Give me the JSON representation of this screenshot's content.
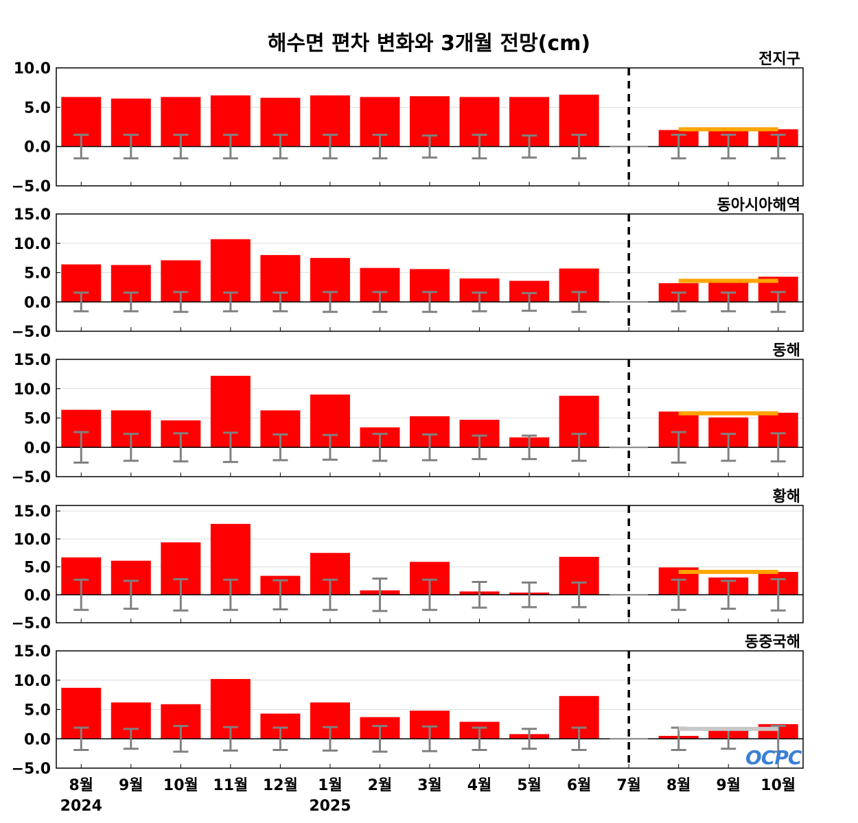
{
  "title": "해수면 편차 변화와 3개월 전망(cm)",
  "logo": "OCPC",
  "colors": {
    "bar": "#ff0000",
    "error_bar": "#808080",
    "forecast_line": "#ffa500",
    "forecast_line_neutral": "#c8c8c8",
    "divider": "#000000",
    "grid": "#dcdcdc"
  },
  "chart_data": {
    "type": "bar",
    "categories": [
      "8월",
      "9월",
      "10월",
      "11월",
      "12월",
      "1월",
      "2월",
      "3월",
      "4월",
      "5월",
      "6월",
      "7월",
      "8월",
      "9월",
      "10월"
    ],
    "year_labels": [
      {
        "index": 0,
        "label": "2024"
      },
      {
        "index": 5,
        "label": "2025"
      }
    ],
    "forecast_start_index": 12,
    "divider_index": 11,
    "panels": [
      {
        "name": "전지구",
        "ylim": [
          -5,
          10
        ],
        "yticks": [
          "10.0",
          "5.0",
          "0.0",
          "−5.0"
        ],
        "ytick_values": [
          10,
          5,
          0,
          -5
        ],
        "values": [
          6.3,
          6.1,
          6.3,
          6.5,
          6.2,
          6.5,
          6.3,
          6.4,
          6.3,
          6.3,
          6.6,
          0,
          2.1,
          2.2,
          2.2
        ],
        "error": [
          1.5,
          1.5,
          1.5,
          1.5,
          1.5,
          1.5,
          1.5,
          1.4,
          1.5,
          1.4,
          1.5,
          0,
          1.5,
          1.5,
          1.5
        ],
        "forecast_line": 2.2,
        "forecast_line_color": "#ffa500"
      },
      {
        "name": "동아시아해역",
        "ylim": [
          -5,
          15
        ],
        "yticks": [
          "15.0",
          "10.0",
          "5.0",
          "0.0",
          "−5.0"
        ],
        "ytick_values": [
          15,
          10,
          5,
          0,
          -5
        ],
        "values": [
          6.4,
          6.3,
          7.1,
          10.7,
          8.0,
          7.5,
          5.8,
          5.6,
          4.0,
          3.6,
          5.7,
          0,
          3.2,
          3.7,
          4.3
        ],
        "error": [
          1.6,
          1.6,
          1.7,
          1.6,
          1.6,
          1.7,
          1.7,
          1.7,
          1.6,
          1.5,
          1.7,
          0,
          1.6,
          1.6,
          1.7
        ],
        "forecast_line": 3.6,
        "forecast_line_color": "#ffa500"
      },
      {
        "name": "동해",
        "ylim": [
          -5,
          15
        ],
        "yticks": [
          "15.0",
          "10.0",
          "5.0",
          "0.0",
          "−5.0"
        ],
        "ytick_values": [
          15,
          10,
          5,
          0,
          -5
        ],
        "values": [
          6.4,
          6.3,
          4.6,
          12.2,
          6.3,
          9.0,
          3.4,
          5.3,
          4.7,
          1.7,
          8.8,
          0,
          6.1,
          5.1,
          5.9
        ],
        "error": [
          2.6,
          2.3,
          2.4,
          2.5,
          2.2,
          2.1,
          2.3,
          2.2,
          2.0,
          2.0,
          2.3,
          0,
          2.6,
          2.3,
          2.4
        ],
        "forecast_line": 5.8,
        "forecast_line_color": "#ffa500"
      },
      {
        "name": "황해",
        "ylim": [
          -5,
          16
        ],
        "yticks": [
          "15.0",
          "10.0",
          "5.0",
          "0.0",
          "−5.0"
        ],
        "ytick_values": [
          15,
          10,
          5,
          0,
          -5
        ],
        "values": [
          6.7,
          6.1,
          9.4,
          12.7,
          3.4,
          7.5,
          0.8,
          5.9,
          0.6,
          0.4,
          6.8,
          0,
          4.9,
          3.1,
          4.1
        ],
        "error": [
          2.7,
          2.5,
          2.8,
          2.7,
          2.6,
          2.7,
          2.9,
          2.7,
          2.3,
          2.2,
          2.2,
          0,
          2.7,
          2.5,
          2.8
        ],
        "forecast_line": 4.1,
        "forecast_line_color": "#ffa500"
      },
      {
        "name": "동중국해",
        "ylim": [
          -5,
          15
        ],
        "yticks": [
          "15.0",
          "10.0",
          "5.0",
          "0.0",
          "−5.0"
        ],
        "ytick_values": [
          15,
          10,
          5,
          0,
          -5
        ],
        "values": [
          8.7,
          6.2,
          5.9,
          10.2,
          4.3,
          6.2,
          3.7,
          4.8,
          2.9,
          0.8,
          7.3,
          0,
          0.5,
          1.6,
          2.5
        ],
        "error": [
          1.9,
          1.7,
          2.2,
          2.0,
          1.9,
          2.0,
          2.2,
          2.1,
          1.9,
          1.7,
          1.9,
          0,
          1.9,
          1.7,
          2.2
        ],
        "forecast_line": 1.7,
        "forecast_line_color": "#c8c8c8"
      }
    ]
  }
}
